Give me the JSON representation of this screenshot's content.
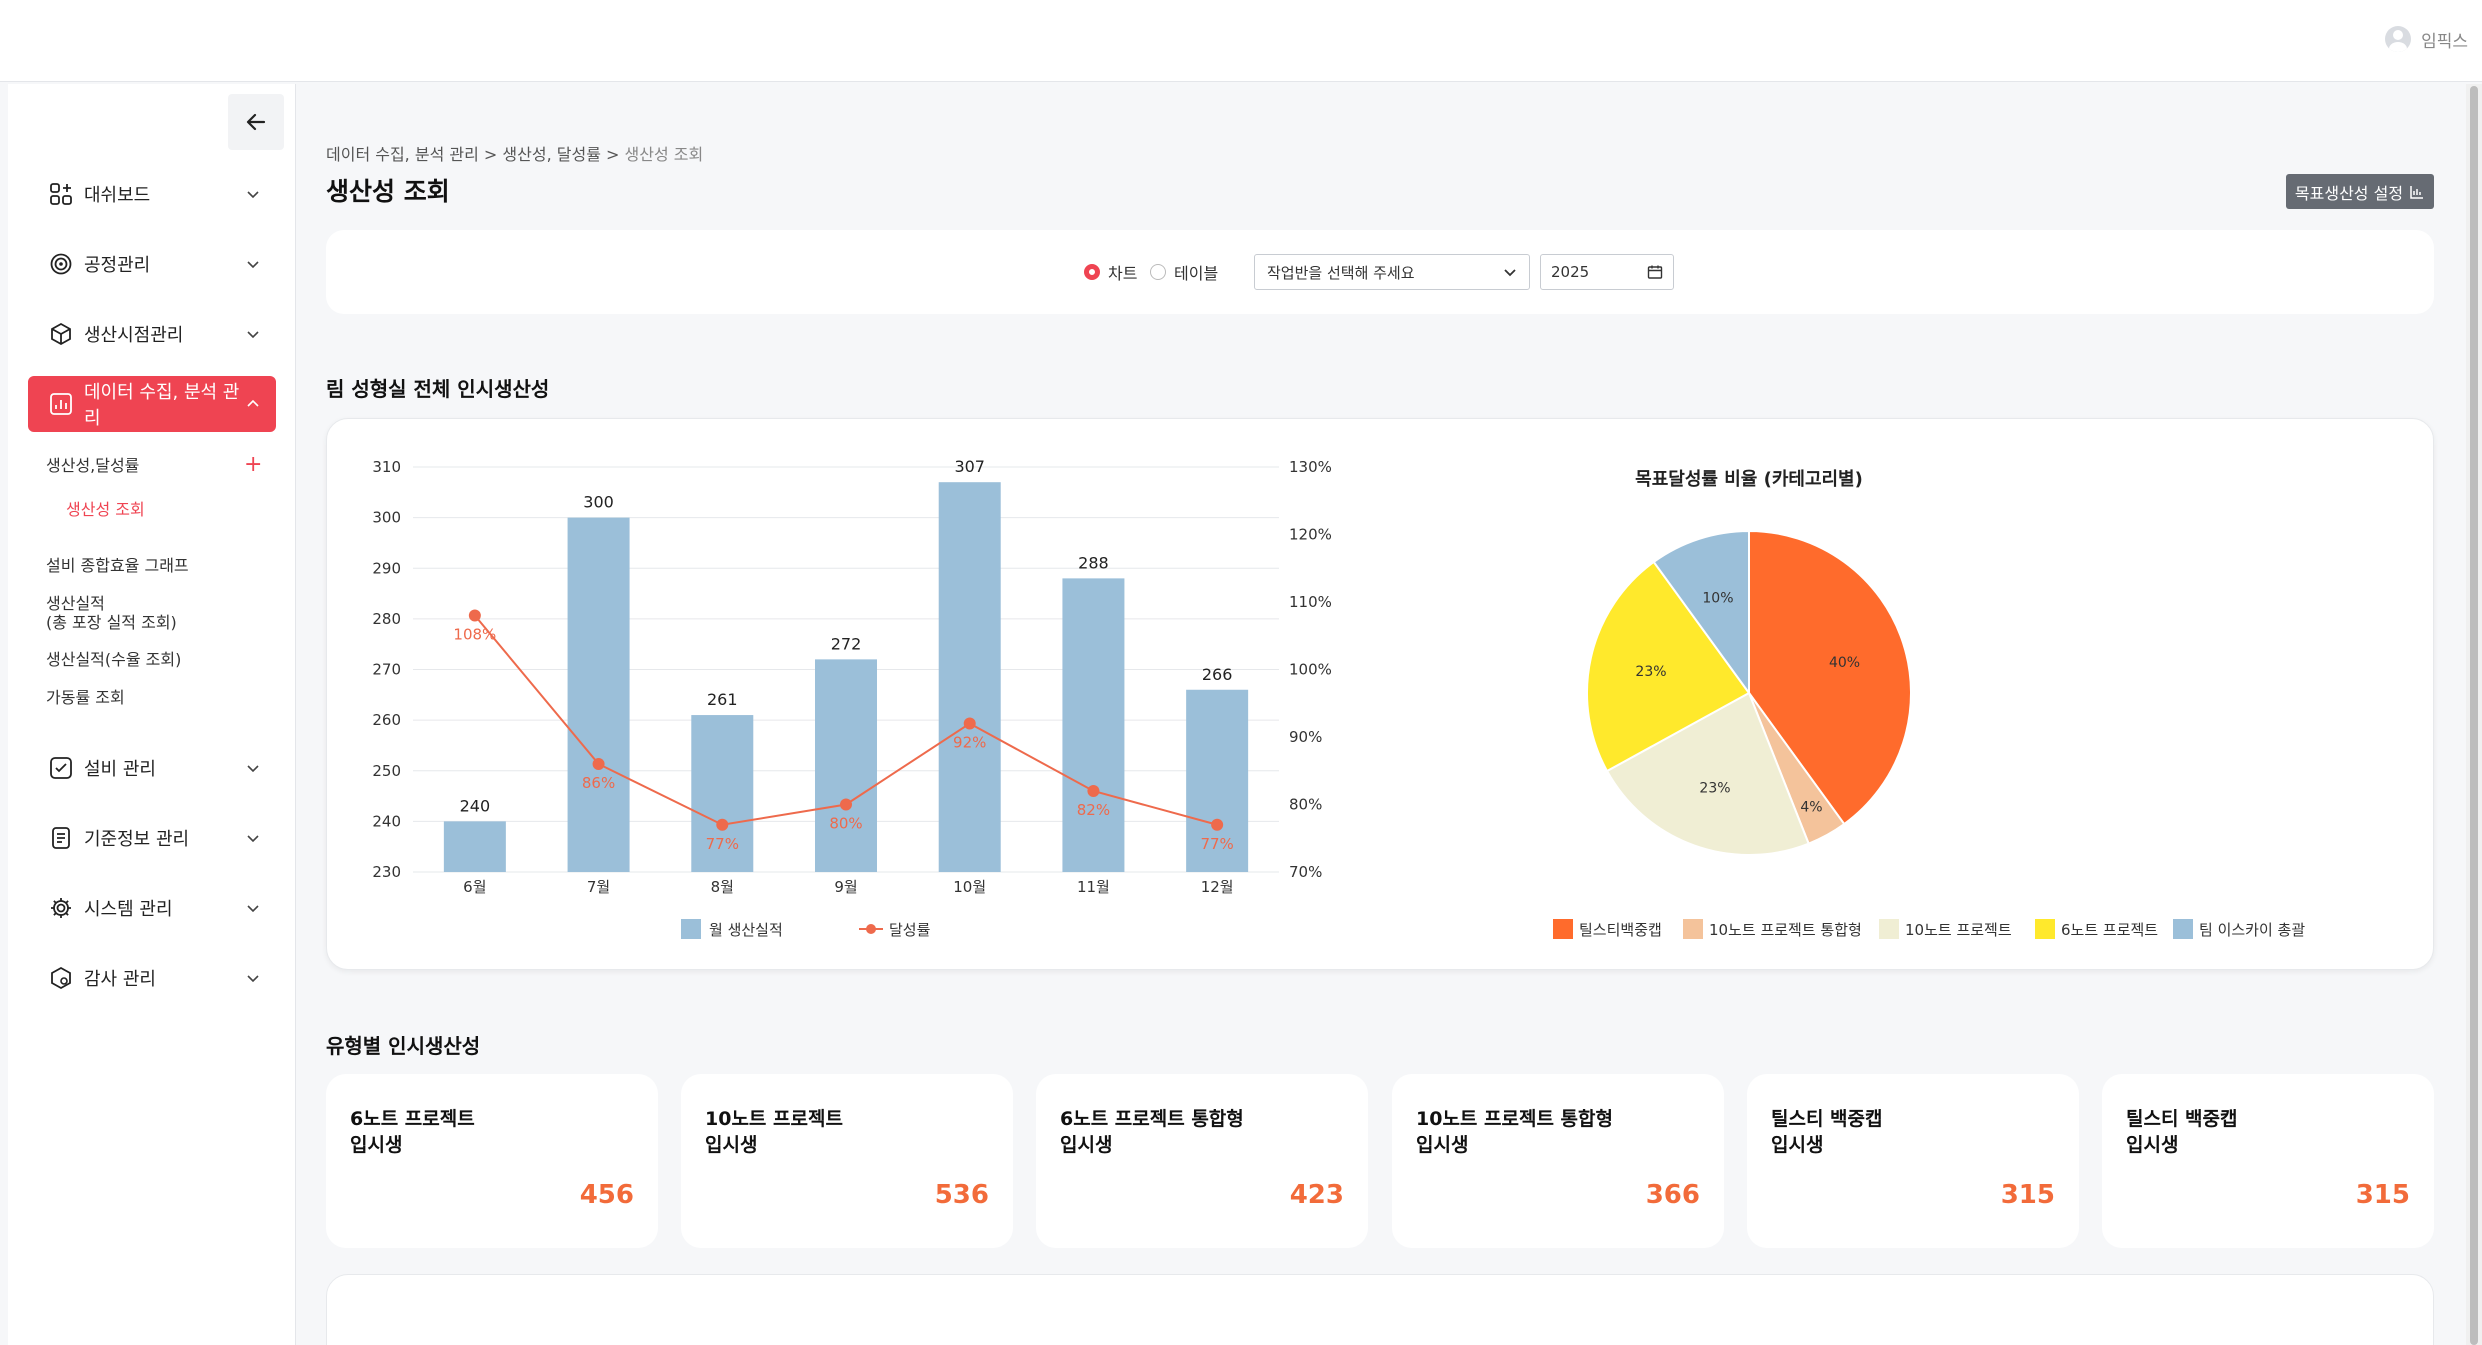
{
  "header": {
    "user_name": "임픽스"
  },
  "sidebar": {
    "menu": [
      {
        "label": "대쉬보드",
        "icon": "dashboard-icon"
      },
      {
        "label": "공정관리",
        "icon": "process-icon"
      },
      {
        "label": "생산시점관리",
        "icon": "box-icon"
      },
      {
        "label": "데이터 수집, 분석 관리",
        "icon": "chart-icon",
        "active": true
      },
      {
        "label": "설비 관리",
        "icon": "equipment-icon"
      },
      {
        "label": "기준정보 관리",
        "icon": "document-icon"
      },
      {
        "label": "시스템 관리",
        "icon": "gear-icon"
      },
      {
        "label": "감사 관리",
        "icon": "audit-icon"
      }
    ],
    "sub_items": {
      "productivity": "생산성,달성률",
      "productivity_view": "생산성 조회",
      "equipment_graph": "설비 종합효율 그래프",
      "production_line1": "생산실적",
      "production_line2": "(총 포장 실적 조회)",
      "production_manual": "생산실적(수율 조회)",
      "uptime": "가동률 조회"
    }
  },
  "breadcrumb": {
    "part1": "데이터 수집, 분석 관리",
    "part2": "생산성, 달성률",
    "current": "생산성 조회"
  },
  "page": {
    "title": "생산성 조회",
    "target_button": "목표생산성 설정"
  },
  "filters": {
    "radio_chart": "차트",
    "radio_table": "테이블",
    "select_placeholder": "작업반을 선택해 주세요",
    "year": "2025"
  },
  "section1_title": "림 성형실 전체 인시생산성",
  "section2_title": "유형별 인시생산성",
  "chart_data": [
    {
      "type": "bar",
      "categories": [
        "6월",
        "7월",
        "8월",
        "9월",
        "10월",
        "11월",
        "12월"
      ],
      "series": [
        {
          "name": "월 생산실적",
          "type": "bar",
          "values": [
            240,
            300,
            261,
            272,
            307,
            288,
            266
          ],
          "color": "#9bbfd9"
        },
        {
          "name": "달성률",
          "type": "line",
          "axis": "right",
          "values": [
            108,
            86,
            77,
            80,
            92,
            82,
            77
          ],
          "color": "#ee6a4c"
        }
      ],
      "ylim": [
        230,
        310
      ],
      "yticks": [
        310,
        300,
        290,
        280,
        270,
        260,
        250,
        240,
        230
      ],
      "y2lim": [
        70,
        130
      ],
      "y2ticks": [
        "130%",
        "120%",
        "110%",
        "100%",
        "90%",
        "80%",
        "70%"
      ],
      "grid": true,
      "legend": "bottom"
    },
    {
      "type": "pie",
      "title": "목표달성률 비율 (카테고리별)",
      "labels": [
        "틸스티백중캡",
        "10노트 프로젝트 통합형",
        "10노트 프로젝트",
        "6노트 프로젝트",
        "팀 이스카이 총괄"
      ],
      "values": [
        40,
        4,
        23,
        23,
        10
      ],
      "colors": [
        "#ff6b2c",
        "#f4c39b",
        "#f0eed4",
        "#ffe92c",
        "#9bbfd9"
      ],
      "legend": "bottom"
    }
  ],
  "stat_cards": [
    {
      "line1": "6노트 프로젝트",
      "line2": "입시생",
      "value": "456"
    },
    {
      "line1": "10노트 프로젝트",
      "line2": "입시생",
      "value": "536"
    },
    {
      "line1": "6노트 프로젝트 통합형",
      "line2": "입시생",
      "value": "423"
    },
    {
      "line1": "10노트 프로젝트 통합형",
      "line2": "입시생",
      "value": "366"
    },
    {
      "line1": "틸스티 백중캡",
      "line2": "입시생",
      "value": "315"
    },
    {
      "line1": "틸스티 백중캡",
      "line2": "입시생",
      "value": "315"
    }
  ]
}
